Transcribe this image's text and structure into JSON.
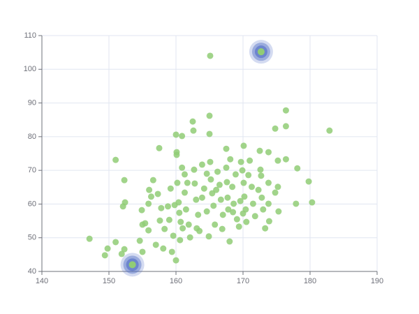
{
  "chart_data": {
    "type": "scatter",
    "xlim": [
      140,
      190
    ],
    "xticks": [
      140,
      150,
      160,
      170,
      180,
      190
    ],
    "ylim": [
      40,
      110
    ],
    "yticks": [
      40,
      50,
      60,
      70,
      80,
      90,
      100,
      110
    ],
    "grid": true,
    "series": [
      {
        "color": "#91cc75",
        "x": [
          147.1,
          149.8,
          149.4,
          151.0,
          151.0,
          152.3,
          152.3,
          152.4,
          152.1,
          151.9,
          154.6,
          155.0,
          154.9,
          155.4,
          156.0,
          156.6,
          155.9,
          155.9,
          157.5,
          157.3,
          157.8,
          157.6,
          158.3,
          157.0,
          158.1,
          159.0,
          159.6,
          159.4,
          160.0,
          160.0,
          160.1,
          160.1,
          160.2,
          160.4,
          160.5,
          160.7,
          160.9,
          160.9,
          161.3,
          161.3,
          161.5,
          161.9,
          162.1,
          162.5,
          162.6,
          162.7,
          162.8,
          163.0,
          163.3,
          163.5,
          163.9,
          164.2,
          164.6,
          164.9,
          165.1,
          165.0,
          165.0,
          165.1,
          165.2,
          165.4,
          165.6,
          165.8,
          166.2,
          166.5,
          166.7,
          167.0,
          167.5,
          167.5,
          167.6,
          167.7,
          167.8,
          168.0,
          168.1,
          168.4,
          168.6,
          168.9,
          169.1,
          169.4,
          169.7,
          169.9,
          170.1,
          170.1,
          170.2,
          170.4,
          170.5,
          171.0,
          171.3,
          171.8,
          172.5,
          172.6,
          172.7,
          172.8,
          173.0,
          173.3,
          173.8,
          173.8,
          173.9,
          174.8,
          175.2,
          175.2,
          175.3,
          176.4,
          176.4,
          176.4,
          177.9,
          178.1,
          179.8,
          180.3,
          182.9,
          155.0,
          156.3,
          158.8,
          159.2,
          161.7,
          163.1,
          163.9,
          164.6,
          166.0,
          166.9,
          168.5,
          169.6,
          170.0,
          170.8,
          171.5,
          172.3,
          173.8,
          174.8,
          160.6,
          161.0,
          159.8,
          153.5,
          172.7
        ],
        "values": [
          49.7,
          46.8,
          44.8,
          48.7,
          73.1,
          46.6,
          67.1,
          60.5,
          59.3,
          45.2,
          49.1,
          45.8,
          58.2,
          54.3,
          64.2,
          67.1,
          60.1,
          52.2,
          76.6,
          63.0,
          58.8,
          55.1,
          52.6,
          47.9,
          46.8,
          55.3,
          50.6,
          45.8,
          43.3,
          80.6,
          75.4,
          74.6,
          66.3,
          60.5,
          57.4,
          54.7,
          80.2,
          70.8,
          68.8,
          63.4,
          58.4,
          53.9,
          50.1,
          84.5,
          81.8,
          70.2,
          66.1,
          61.3,
          56.8,
          52.0,
          71.7,
          64.6,
          57.8,
          50.4,
          104.0,
          86.2,
          80.8,
          72.5,
          67.3,
          63.2,
          59.5,
          53.9,
          69.6,
          65.7,
          61.3,
          56.8,
          76.4,
          70.8,
          66.5,
          61.9,
          58.4,
          48.9,
          73.3,
          65.1,
          60.1,
          68.8,
          55.5,
          53.3,
          72.5,
          70.0,
          77.3,
          66.3,
          62.2,
          58.4,
          54.7,
          72.9,
          65.1,
          56.4,
          75.8,
          70.2,
          68.4,
          61.9,
          58.4,
          52.8,
          75.4,
          66.3,
          54.9,
          82.4,
          72.9,
          65.1,
          57.8,
          87.8,
          83.1,
          73.3,
          60.1,
          70.6,
          66.7,
          60.5,
          81.8,
          53.9,
          62.2,
          59.3,
          64.6,
          66.3,
          52.8,
          61.9,
          69.0,
          64.2,
          52.6,
          57.6,
          60.9,
          57.2,
          68.6,
          60.1,
          64.2,
          60.1,
          63.4,
          49.3,
          52.8,
          59.7,
          42.0,
          105.2
        ]
      },
      {
        "color": "#5470c6",
        "effect": true,
        "x": [
          153.5,
          172.7
        ],
        "values": [
          42.0,
          105.2
        ]
      }
    ]
  }
}
